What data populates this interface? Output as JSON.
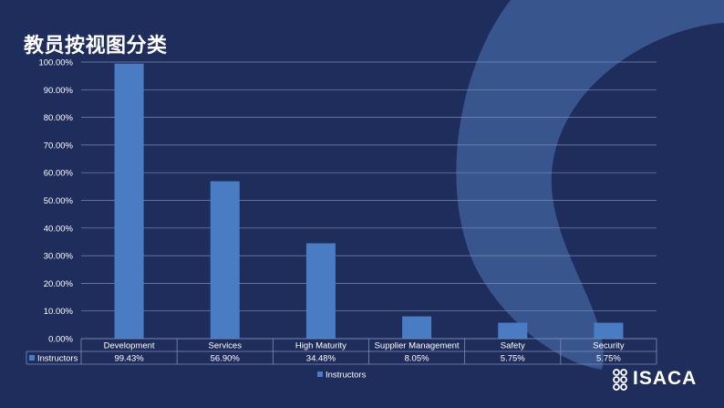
{
  "slide": {
    "title": "教员按视图分类",
    "logo_text": "ISACA",
    "colors": {
      "background": "#1f2d5c",
      "bar": "#4a7cc3",
      "decor": "#3a588f",
      "grid": "#7b8cb4",
      "text": "#ffffff"
    }
  },
  "chart_data": {
    "type": "bar",
    "title": "",
    "categories": [
      "Development",
      "Services",
      "High Maturity",
      "Supplier Management",
      "Safety",
      "Security"
    ],
    "series": [
      {
        "name": "Instructors",
        "values": [
          99.43,
          56.9,
          34.48,
          8.05,
          5.75,
          5.75
        ]
      }
    ],
    "data_labels": [
      "99.43%",
      "56.90%",
      "34.48%",
      "8.05%",
      "5.75%",
      "5.75%"
    ],
    "yticks": [
      "0.00%",
      "10.00%",
      "20.00%",
      "30.00%",
      "40.00%",
      "50.00%",
      "60.00%",
      "70.00%",
      "80.00%",
      "90.00%",
      "100.00%"
    ],
    "ylim": [
      0,
      100
    ],
    "grid": true,
    "legend": "bottom",
    "data_table": true
  }
}
